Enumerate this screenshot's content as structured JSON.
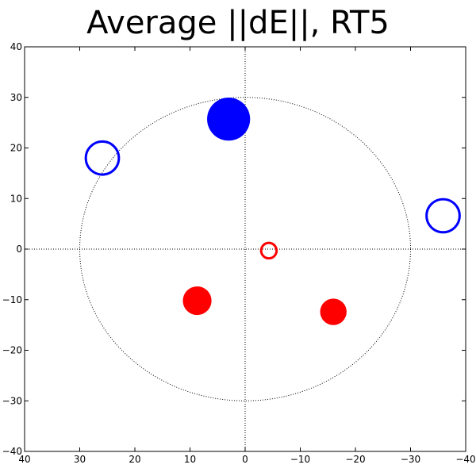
{
  "chart_data": {
    "type": "scatter",
    "title": "Average ||dE||, RT5",
    "xlabel": "",
    "ylabel": "",
    "xlim": [
      40,
      -40
    ],
    "ylim": [
      -40,
      40
    ],
    "x_reversed": true,
    "xticks": [
      40,
      30,
      20,
      10,
      0,
      -10,
      -20,
      -30,
      -40
    ],
    "yticks": [
      40,
      30,
      20,
      10,
      0,
      -10,
      -20,
      -30,
      -40
    ],
    "xtick_labels": [
      "40",
      "30",
      "20",
      "10",
      "0",
      "−10",
      "−20",
      "−30",
      "−40"
    ],
    "ytick_labels": [
      "40",
      "30",
      "20",
      "10",
      "0",
      "−10",
      "−20",
      "−30",
      "−40"
    ],
    "grid": false,
    "reference_circle": {
      "radius": 30,
      "style": "dotted"
    },
    "crosshair": {
      "x": 0,
      "y": 0,
      "style": "dotted"
    },
    "colors": {
      "blue": "#0000ff",
      "red": "#ff0000"
    },
    "points": [
      {
        "x": 3,
        "y": 25.7,
        "size": 3.9,
        "color": "#0000ff",
        "filled": true
      },
      {
        "x": 25.9,
        "y": 18,
        "size": 3.0,
        "color": "#0000ff",
        "filled": false
      },
      {
        "x": -35.9,
        "y": 6.6,
        "size": 3.0,
        "color": "#0000ff",
        "filled": false
      },
      {
        "x": -4.3,
        "y": -0.3,
        "size": 1.4,
        "color": "#ff0000",
        "filled": false
      },
      {
        "x": 8.7,
        "y": -10.2,
        "size": 2.6,
        "color": "#ff0000",
        "filled": true
      },
      {
        "x": -16,
        "y": -12.4,
        "size": 2.4,
        "color": "#ff0000",
        "filled": true
      }
    ]
  }
}
